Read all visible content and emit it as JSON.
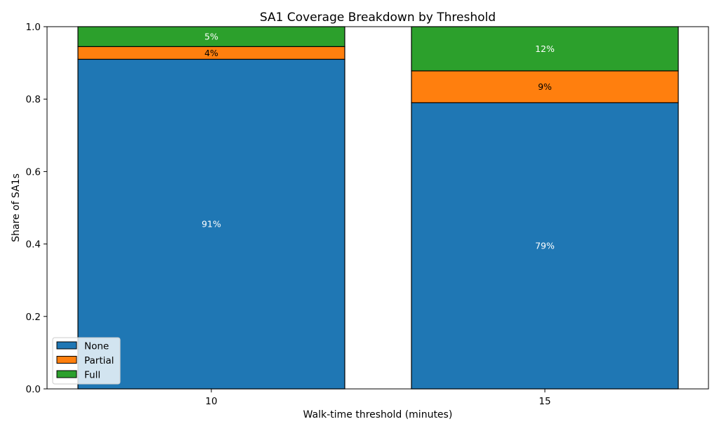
{
  "chart_data": {
    "type": "bar",
    "stacked": true,
    "title": "SA1 Coverage Breakdown by Threshold",
    "xlabel": "Walk-time threshold (minutes)",
    "ylabel": "Share of SA1s",
    "categories": [
      "10",
      "15"
    ],
    "ylim": [
      0,
      1.0
    ],
    "yticks": [
      "0.0",
      "0.2",
      "0.4",
      "0.6",
      "0.8",
      "1.0"
    ],
    "grid": false,
    "legend_position": "lower-left",
    "series": [
      {
        "name": "None",
        "color": "#1f77b4",
        "label_color": "#ffffff",
        "values": [
          0.91,
          0.79
        ],
        "labels": [
          "91%",
          "79%"
        ]
      },
      {
        "name": "Partial",
        "color": "#ff7f0e",
        "label_color": "#000000",
        "values": [
          0.035,
          0.088
        ],
        "labels": [
          "4%",
          "9%"
        ]
      },
      {
        "name": "Full",
        "color": "#2ca02c",
        "label_color": "#ffffff",
        "values": [
          0.055,
          0.122
        ],
        "labels": [
          "5%",
          "12%"
        ]
      }
    ]
  }
}
